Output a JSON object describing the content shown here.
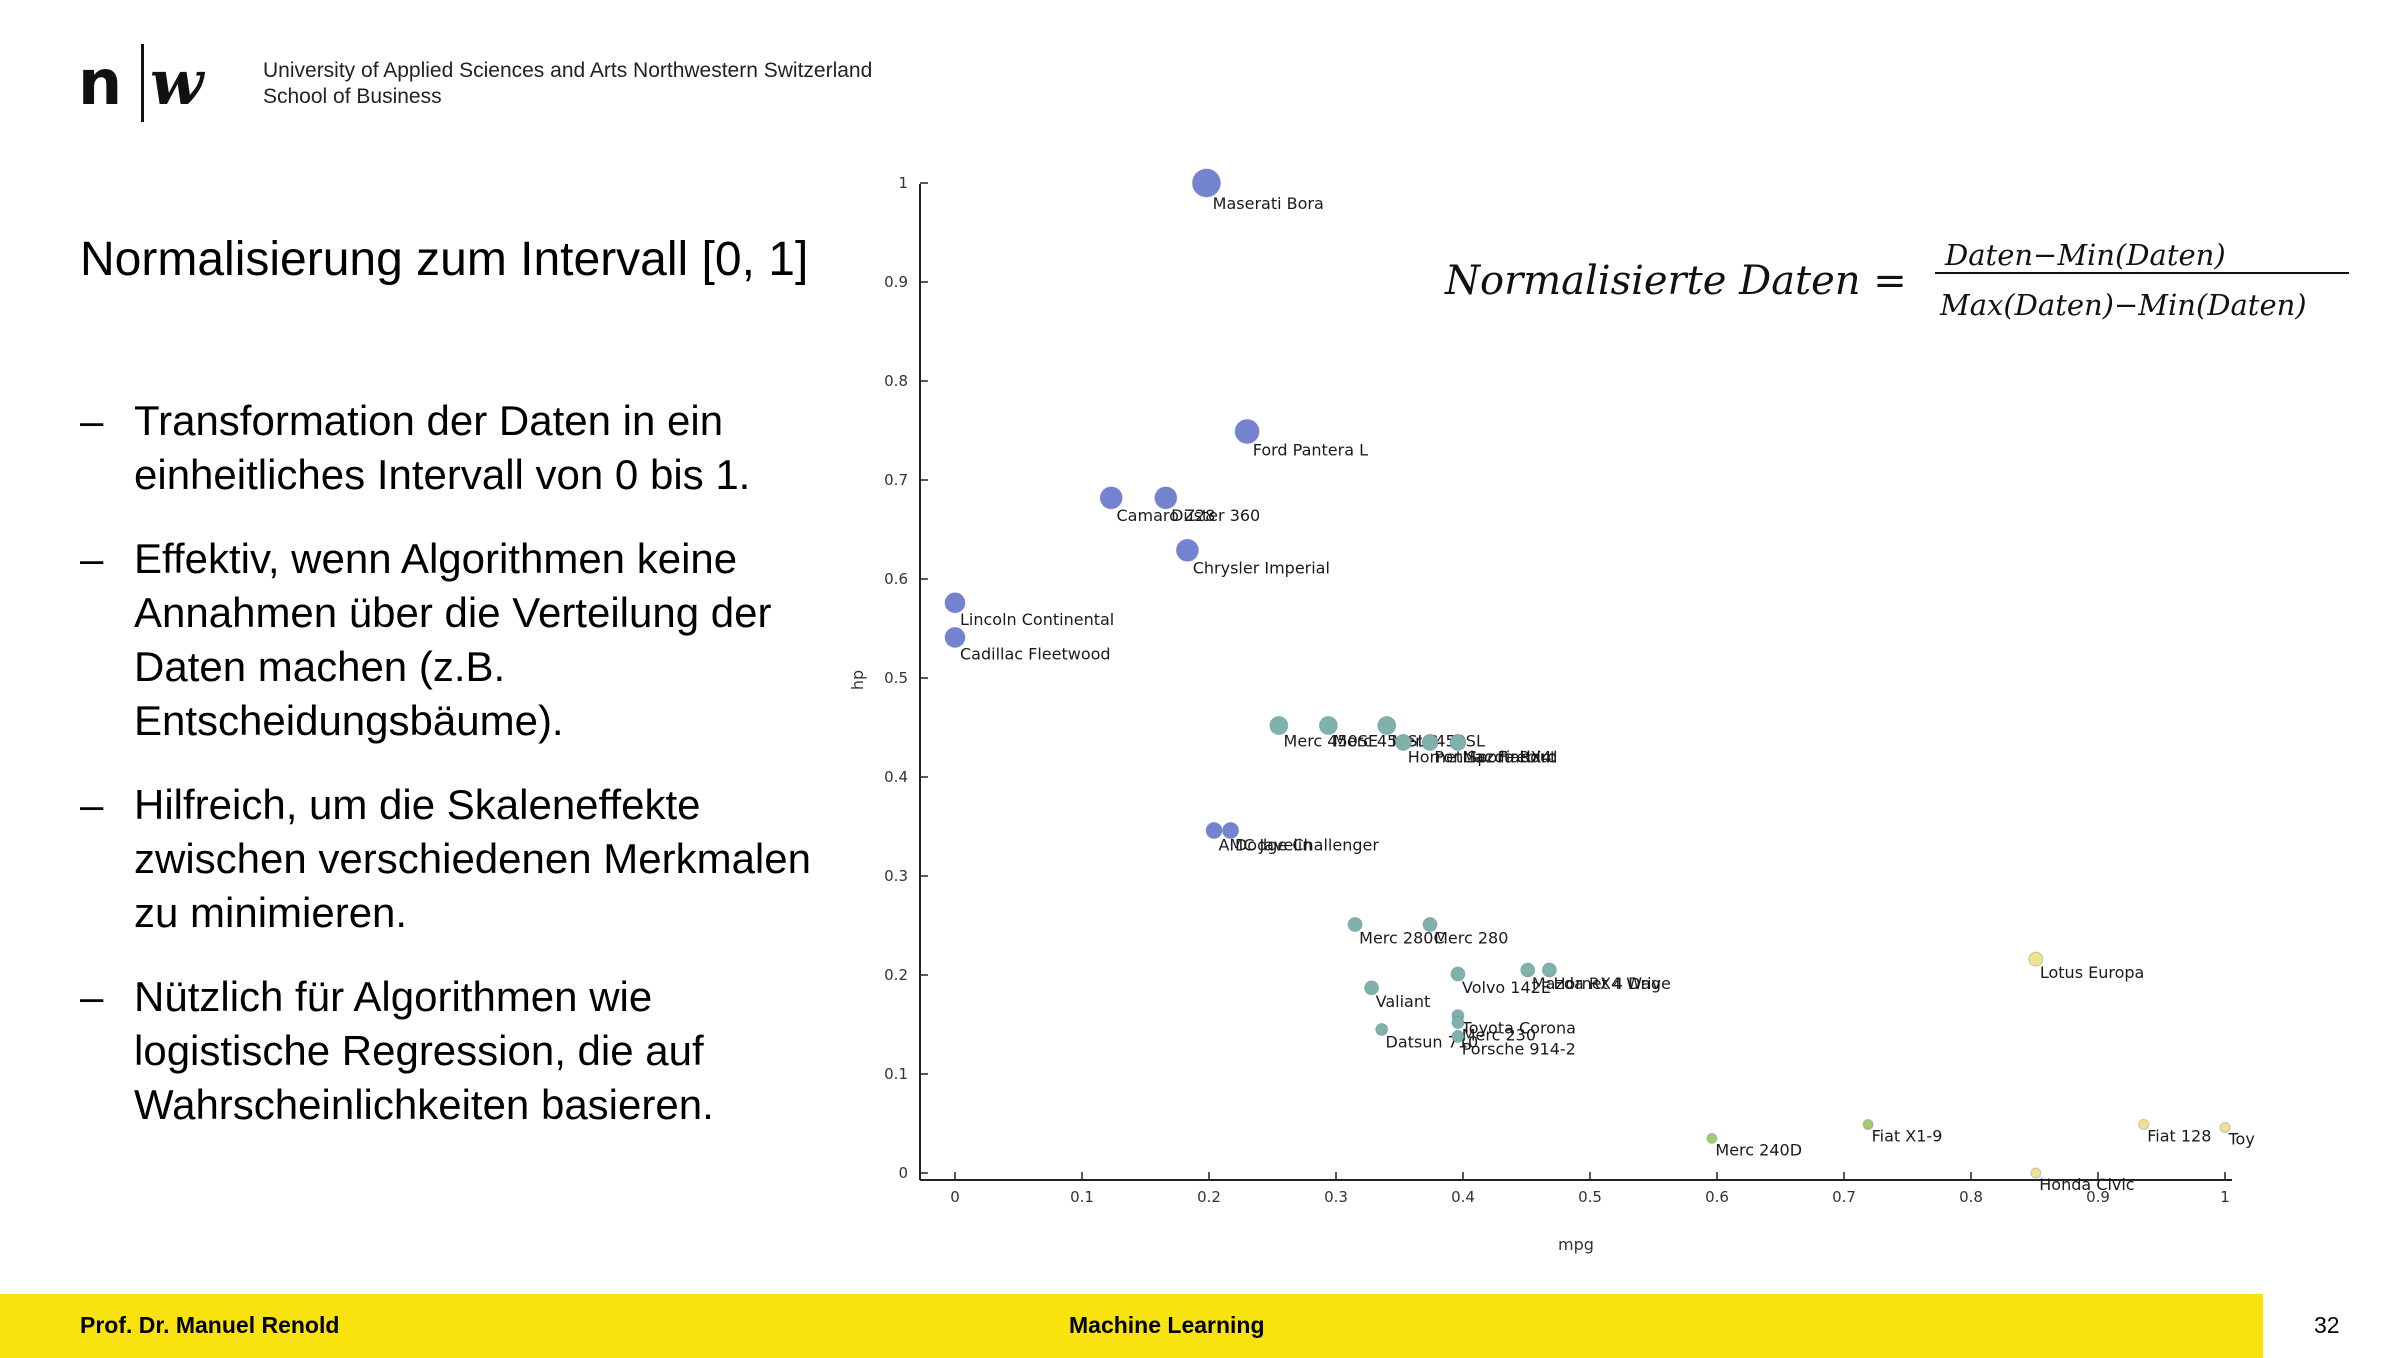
{
  "header": {
    "logo_text": "n|w",
    "institution_line1": "University of Applied Sciences and Arts Northwestern Switzerland",
    "institution_line2": "School of Business"
  },
  "slide": {
    "title": "Normalisierung zum Intervall [0, 1]",
    "bullets": [
      "Transformation der Daten in ein einheitliches Intervall von 0 bis 1.",
      "Effektiv, wenn Algorithmen keine Annahmen über die Verteilung der Daten machen (z.B. Entscheidungsbäume).",
      "Hilfreich, um die Skaleneffekte zwischen verschiedenen Merkmalen zu minimieren.",
      "Nützlich für Algorithmen wie logistische Regression, die auf Wahrscheinlichkeiten basieren."
    ],
    "bullet_marker": "–"
  },
  "formula": {
    "lhs": "Normalisierte Daten =",
    "numerator": "Daten−Min(Daten)",
    "denominator": "Max(Daten)−Min(Daten)"
  },
  "chart_data": {
    "type": "scatter",
    "xlabel": "mpg",
    "ylabel": "hp",
    "xlim": [
      0,
      1
    ],
    "ylim": [
      0,
      1
    ],
    "x_ticks": [
      "0",
      "0.1",
      "0.2",
      "0.3",
      "0.4",
      "0.5",
      "0.6",
      "0.7",
      "0.8",
      "0.9",
      "1"
    ],
    "y_ticks": [
      "0",
      "0.1",
      "0.2",
      "0.3",
      "0.4",
      "0.5",
      "0.6",
      "0.7",
      "0.8",
      "0.9",
      "1"
    ],
    "grid": false,
    "colors": {
      "blue": "#7383cf",
      "teal": "#7fb3aa",
      "green": "#a4cc6a",
      "yellow": "#f1e38d"
    },
    "points": [
      {
        "label": "Maserati Bora",
        "x": 0.198,
        "y": 1.0,
        "r": 14,
        "c": "blue"
      },
      {
        "label": "Ford Pantera L",
        "x": 0.23,
        "y": 0.749,
        "r": 12,
        "c": "blue"
      },
      {
        "label": "Camaro Z28",
        "x": 0.123,
        "y": 0.682,
        "r": 11,
        "c": "blue"
      },
      {
        "label": "Duster 360",
        "x": 0.166,
        "y": 0.682,
        "r": 11,
        "c": "blue"
      },
      {
        "label": "Chrysler Imperial",
        "x": 0.183,
        "y": 0.629,
        "r": 11,
        "c": "blue"
      },
      {
        "label": "Lincoln Continental",
        "x": 0.0,
        "y": 0.576,
        "r": 10,
        "c": "blue"
      },
      {
        "label": "Cadillac Fleetwood",
        "x": 0.0,
        "y": 0.541,
        "r": 10,
        "c": "blue"
      },
      {
        "label": "AMC Javelin",
        "x": 0.204,
        "y": 0.346,
        "r": 8,
        "c": "blue"
      },
      {
        "label": "Dodge Challenger",
        "x": 0.217,
        "y": 0.346,
        "r": 8,
        "c": "blue"
      },
      {
        "label": "Merc 450SE",
        "x": 0.255,
        "y": 0.452,
        "r": 9,
        "c": "teal"
      },
      {
        "label": "Merc 450SLC",
        "x": 0.294,
        "y": 0.452,
        "r": 9,
        "c": "teal"
      },
      {
        "label": "Merc 450SL",
        "x": 0.34,
        "y": 0.452,
        "r": 9,
        "c": "teal"
      },
      {
        "label": "Hornet Sportabout",
        "x": 0.353,
        "y": 0.435,
        "r": 8,
        "c": "teal"
      },
      {
        "label": "Pontiac Firebird",
        "x": 0.374,
        "y": 0.435,
        "r": 8,
        "c": "teal"
      },
      {
        "label": "Mazda RX4",
        "x": 0.396,
        "y": 0.435,
        "r": 8,
        "c": "teal"
      },
      {
        "label": "Merc 280C",
        "x": 0.315,
        "y": 0.251,
        "r": 7,
        "c": "teal"
      },
      {
        "label": "Merc 280",
        "x": 0.374,
        "y": 0.251,
        "r": 7,
        "c": "teal"
      },
      {
        "label": "Volvo 142E",
        "x": 0.396,
        "y": 0.201,
        "r": 7,
        "c": "teal"
      },
      {
        "label": "Mazda RX4 Wag",
        "x": 0.451,
        "y": 0.205,
        "r": 7,
        "c": "teal"
      },
      {
        "label": "Hornet 4 Drive",
        "x": 0.468,
        "y": 0.205,
        "r": 7,
        "c": "teal"
      },
      {
        "label": "Valiant",
        "x": 0.328,
        "y": 0.187,
        "r": 7,
        "c": "teal"
      },
      {
        "label": "Datsun 710",
        "x": 0.336,
        "y": 0.145,
        "r": 6,
        "c": "teal"
      },
      {
        "label": "Toyota Corona",
        "x": 0.396,
        "y": 0.159,
        "r": 6,
        "c": "teal"
      },
      {
        "label": "Merc 230",
        "x": 0.396,
        "y": 0.152,
        "r": 6,
        "c": "teal"
      },
      {
        "label": "Porsche 914-2",
        "x": 0.396,
        "y": 0.138,
        "r": 6,
        "c": "teal"
      },
      {
        "label": "Lotus Europa",
        "x": 0.851,
        "y": 0.216,
        "r": 7,
        "c": "yellow"
      },
      {
        "label": "Merc 240D",
        "x": 0.596,
        "y": 0.035,
        "r": 5,
        "c": "green"
      },
      {
        "label": "Fiat X1-9",
        "x": 0.719,
        "y": 0.049,
        "r": 5,
        "c": "green"
      },
      {
        "label": "Fiat 128",
        "x": 0.936,
        "y": 0.049,
        "r": 5,
        "c": "yellow"
      },
      {
        "label": "Toy",
        "x": 1.0,
        "y": 0.046,
        "r": 5,
        "c": "yellow"
      },
      {
        "label": "Honda Civic",
        "x": 0.851,
        "y": 0.0,
        "r": 5,
        "c": "yellow"
      }
    ]
  },
  "footer": {
    "author": "Prof. Dr. Manuel Renold",
    "course": "Machine Learning",
    "page": "32"
  }
}
